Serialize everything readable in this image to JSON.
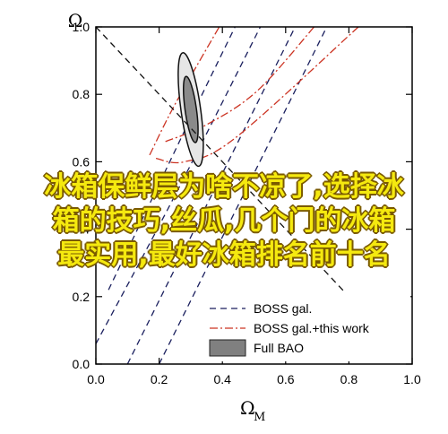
{
  "chart_data": {
    "type": "line",
    "xlabel": "Ω",
    "xlabel_sub": "M",
    "ylabel": "Ω",
    "xlim": [
      0,
      1
    ],
    "ylim": [
      0,
      1
    ],
    "x_ticks": [
      "0.0",
      "0.2",
      "0.4",
      "0.6",
      "0.8",
      "1.0"
    ],
    "y_ticks": [
      "0.0",
      "0.2",
      "0.4",
      "0.6",
      "0.8",
      "1.0"
    ],
    "grid": false,
    "legend_position": "bottom-right",
    "reference_lines": [
      {
        "style": "black-dashed",
        "points": [
          [
            0,
            1
          ],
          [
            1,
            0
          ]
        ]
      }
    ],
    "series": [
      {
        "name": "BOSS gal.",
        "style": "navy-dashed",
        "color": "#1a1f5e",
        "contours": [
          [
            [
              0.0,
              0.06
            ],
            [
              0.25,
              0.5
            ],
            [
              0.52,
              1.0
            ]
          ],
          [
            [
              0.1,
              0.0
            ],
            [
              0.36,
              0.49
            ],
            [
              0.63,
              1.0
            ]
          ],
          [
            [
              0.04,
              0.22
            ],
            [
              0.3,
              0.73
            ],
            [
              0.44,
              1.0
            ]
          ],
          [
            [
              0.2,
              0.0
            ],
            [
              0.46,
              0.49
            ],
            [
              0.73,
              1.0
            ]
          ]
        ]
      },
      {
        "name": "BOSS gal.+this work",
        "style": "red-dashdot",
        "color": "#cc3322",
        "contours": [
          [
            [
              0.17,
              0.62
            ],
            [
              0.25,
              0.77
            ],
            [
              0.39,
              1.0
            ]
          ],
          [
            [
              0.22,
              0.66
            ],
            [
              0.35,
              0.71
            ],
            [
              0.51,
              0.81
            ],
            [
              0.69,
              1.0
            ]
          ],
          [
            [
              0.19,
              0.61
            ],
            [
              0.28,
              0.6
            ],
            [
              0.44,
              0.67
            ],
            [
              0.83,
              1.0
            ]
          ]
        ]
      },
      {
        "name": "Full BAO",
        "style": "grey-filled",
        "color": "#808080",
        "ellipses": [
          {
            "cx": 0.3,
            "cy": 0.755,
            "rx": 0.031,
            "ry": 0.17,
            "tilt": -8,
            "fill": "#e6e6e6"
          },
          {
            "cx": 0.3,
            "cy": 0.755,
            "rx": 0.018,
            "ry": 0.099,
            "tilt": -8,
            "fill": "#8a8a8a"
          }
        ]
      }
    ],
    "legend": [
      {
        "label": "BOSS gal.",
        "style": "navy-dashed"
      },
      {
        "label": "BOSS gal.+this work",
        "style": "red-dashdot"
      },
      {
        "label": "Full BAO",
        "style": "grey-box"
      }
    ]
  },
  "overlay": {
    "line1": "冰箱保鲜层为啥不凉了,选择冰",
    "line2": "箱的技巧,丝瓜,几个门的冰箱",
    "line3": "最实用,最好冰箱排名前十名"
  }
}
